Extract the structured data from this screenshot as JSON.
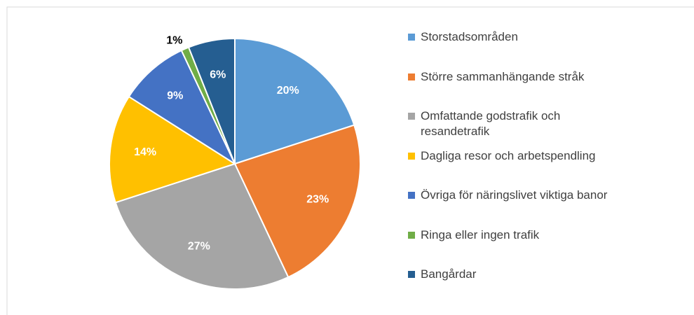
{
  "chart_data": {
    "type": "pie",
    "categories": [
      "Storstadsområden",
      "Större sammanhängande stråk",
      "Omfattande godstrafik och resandetrafik",
      "Dagliga resor och arbetspendling",
      "Övriga för näringslivet viktiga banor",
      "Ringa eller ingen trafik",
      "Bangårdar"
    ],
    "values": [
      20,
      23,
      27,
      14,
      9,
      1,
      6
    ],
    "value_labels": [
      "20%",
      "23%",
      "27%",
      "14%",
      "9%",
      "1%",
      "6%"
    ],
    "colors": [
      "#5b9bd5",
      "#ed7d31",
      "#a5a5a5",
      "#ffc000",
      "#4472c4",
      "#70ad47",
      "#255e91"
    ],
    "legend": "right"
  }
}
